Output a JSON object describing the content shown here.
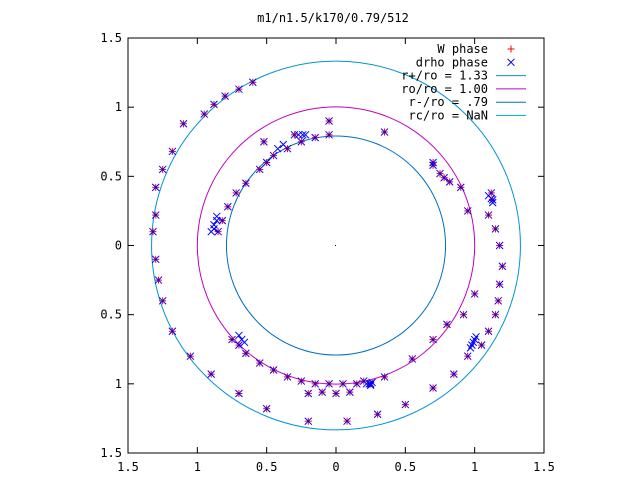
{
  "chart_data": {
    "type": "scatter",
    "title": "m1/n1.5/k170/0.79/512",
    "xlim": [
      -1.5,
      1.5
    ],
    "ylim": [
      -1.5,
      1.5
    ],
    "x_ticks": [
      {
        "value": -1.5,
        "label": "1.5"
      },
      {
        "value": -1,
        "label": "1"
      },
      {
        "value": -0.5,
        "label": "0.5"
      },
      {
        "value": 0,
        "label": "0"
      },
      {
        "value": 0.5,
        "label": "0.5"
      },
      {
        "value": 1,
        "label": "1"
      },
      {
        "value": 1.5,
        "label": "1.5"
      }
    ],
    "y_ticks": [
      {
        "value": 1.5,
        "label": "1.5"
      },
      {
        "value": 1,
        "label": "1"
      },
      {
        "value": 0.5,
        "label": "0.5"
      },
      {
        "value": 0,
        "label": "0"
      },
      {
        "value": -0.5,
        "label": "0.5"
      },
      {
        "value": -1,
        "label": "1"
      },
      {
        "value": -1.5,
        "label": "1.5"
      }
    ],
    "grid": false,
    "legend_position": "top-right",
    "legend": [
      {
        "label": "W phase",
        "marker": "+",
        "color": "#ff0000"
      },
      {
        "label": "drho phase",
        "marker": "x",
        "color": "#0000ff"
      },
      {
        "label": "r+/ro = 1.33",
        "line": true,
        "color": "#0094d6"
      },
      {
        "label": "ro/ro = 1.00",
        "line": true,
        "color": "#c000c0"
      },
      {
        "label": "r-/ro = .79",
        "line": true,
        "color": "#0070c0"
      },
      {
        "label": "rc/ro = NaN",
        "line": true,
        "color": "#00c0d0"
      }
    ],
    "circles": [
      {
        "name": "r+/ro = 1.33",
        "radius": 1.33,
        "color": "#0094d6"
      },
      {
        "name": "ro/ro = 1.00",
        "radius": 1.0,
        "color": "#c000c0"
      },
      {
        "name": "r-/ro = .79",
        "radius": 0.79,
        "color": "#0070c0"
      }
    ],
    "series": [
      {
        "name": "W phase",
        "marker": "+",
        "color": "#ff0000",
        "points": [
          [
            -1.1,
            0.88
          ],
          [
            -0.95,
            0.95
          ],
          [
            -0.88,
            1.02
          ],
          [
            -0.8,
            1.08
          ],
          [
            -0.7,
            1.13
          ],
          [
            -0.6,
            1.18
          ],
          [
            -1.18,
            0.68
          ],
          [
            -1.25,
            0.55
          ],
          [
            -1.3,
            0.42
          ],
          [
            -1.3,
            0.22
          ],
          [
            -1.32,
            0.1
          ],
          [
            -1.3,
            -0.1
          ],
          [
            -1.28,
            -0.25
          ],
          [
            -1.25,
            -0.4
          ],
          [
            -1.18,
            -0.62
          ],
          [
            -1.05,
            -0.8
          ],
          [
            -0.9,
            -0.93
          ],
          [
            -0.7,
            -1.07
          ],
          [
            -0.5,
            -1.18
          ],
          [
            -0.2,
            -1.27
          ],
          [
            0.08,
            -1.27
          ],
          [
            0.3,
            -1.22
          ],
          [
            0.5,
            -1.15
          ],
          [
            0.7,
            -1.03
          ],
          [
            0.85,
            -0.93
          ],
          [
            0.95,
            -0.8
          ],
          [
            1.05,
            -0.72
          ],
          [
            1.1,
            -0.62
          ],
          [
            1.15,
            -0.5
          ],
          [
            1.17,
            -0.4
          ],
          [
            1.18,
            -0.28
          ],
          [
            1.2,
            -0.15
          ],
          [
            1.18,
            0.0
          ],
          [
            1.15,
            0.12
          ],
          [
            1.1,
            0.22
          ],
          [
            1.13,
            0.33
          ],
          [
            1.12,
            0.38
          ],
          [
            -0.75,
            -0.68
          ],
          [
            -0.7,
            -0.72
          ],
          [
            -0.65,
            -0.78
          ],
          [
            -0.55,
            -0.85
          ],
          [
            -0.45,
            -0.9
          ],
          [
            -0.35,
            -0.95
          ],
          [
            -0.25,
            -0.98
          ],
          [
            -0.15,
            -1.0
          ],
          [
            -0.05,
            -1.0
          ],
          [
            0.05,
            -1.0
          ],
          [
            0.15,
            -1.0
          ],
          [
            0.2,
            -0.98
          ],
          [
            0.25,
            -1.0
          ],
          [
            -0.2,
            -1.07
          ],
          [
            -0.1,
            -1.06
          ],
          [
            0.0,
            -1.07
          ],
          [
            0.1,
            -1.06
          ],
          [
            0.35,
            -0.95
          ],
          [
            0.55,
            -0.82
          ],
          [
            0.7,
            -0.68
          ],
          [
            0.8,
            -0.57
          ],
          [
            0.92,
            -0.5
          ],
          [
            1.0,
            -0.35
          ],
          [
            0.75,
            0.52
          ],
          [
            0.78,
            0.49
          ],
          [
            0.82,
            0.46
          ],
          [
            0.7,
            0.58
          ],
          [
            0.9,
            0.42
          ],
          [
            0.95,
            0.25
          ],
          [
            -0.85,
            0.1
          ],
          [
            -0.82,
            0.18
          ],
          [
            -0.78,
            0.28
          ],
          [
            -0.72,
            0.38
          ],
          [
            -0.65,
            0.45
          ],
          [
            -0.55,
            0.55
          ],
          [
            -0.45,
            0.65
          ],
          [
            -0.35,
            0.7
          ],
          [
            -0.25,
            0.75
          ],
          [
            -0.15,
            0.78
          ],
          [
            -0.05,
            0.8
          ],
          [
            -0.5,
            0.6
          ],
          [
            -0.52,
            0.75
          ],
          [
            -0.3,
            0.8
          ],
          [
            -0.05,
            0.9
          ],
          [
            0.35,
            0.82
          ],
          [
            0.7,
            0.6
          ]
        ]
      },
      {
        "name": "drho phase",
        "marker": "x",
        "color": "#0000ff",
        "points": [
          [
            -1.1,
            0.88
          ],
          [
            -0.95,
            0.95
          ],
          [
            -0.88,
            1.02
          ],
          [
            -0.8,
            1.08
          ],
          [
            -0.7,
            1.13
          ],
          [
            -0.6,
            1.18
          ],
          [
            -1.18,
            0.68
          ],
          [
            -1.25,
            0.55
          ],
          [
            -1.3,
            0.42
          ],
          [
            -1.3,
            0.22
          ],
          [
            -1.32,
            0.1
          ],
          [
            -1.3,
            -0.1
          ],
          [
            -1.28,
            -0.25
          ],
          [
            -1.25,
            -0.4
          ],
          [
            -1.18,
            -0.62
          ],
          [
            -1.05,
            -0.8
          ],
          [
            -0.9,
            -0.93
          ],
          [
            -0.7,
            -1.07
          ],
          [
            -0.5,
            -1.18
          ],
          [
            -0.2,
            -1.27
          ],
          [
            0.08,
            -1.27
          ],
          [
            0.3,
            -1.22
          ],
          [
            0.5,
            -1.15
          ],
          [
            0.7,
            -1.03
          ],
          [
            0.85,
            -0.93
          ],
          [
            0.95,
            -0.8
          ],
          [
            1.05,
            -0.72
          ],
          [
            1.1,
            -0.62
          ],
          [
            1.15,
            -0.5
          ],
          [
            1.17,
            -0.4
          ],
          [
            1.18,
            -0.28
          ],
          [
            1.2,
            -0.15
          ],
          [
            1.18,
            0.0
          ],
          [
            1.15,
            0.12
          ],
          [
            1.1,
            0.22
          ],
          [
            1.13,
            0.33
          ],
          [
            1.12,
            0.38
          ],
          [
            -0.75,
            -0.68
          ],
          [
            -0.7,
            -0.72
          ],
          [
            -0.65,
            -0.78
          ],
          [
            -0.55,
            -0.85
          ],
          [
            -0.45,
            -0.9
          ],
          [
            -0.35,
            -0.95
          ],
          [
            -0.25,
            -0.98
          ],
          [
            -0.15,
            -1.0
          ],
          [
            -0.05,
            -1.0
          ],
          [
            0.05,
            -1.0
          ],
          [
            0.15,
            -1.0
          ],
          [
            0.2,
            -0.98
          ],
          [
            0.25,
            -1.0
          ],
          [
            -0.2,
            -1.07
          ],
          [
            -0.1,
            -1.06
          ],
          [
            0.0,
            -1.07
          ],
          [
            0.1,
            -1.06
          ],
          [
            0.35,
            -0.95
          ],
          [
            0.55,
            -0.82
          ],
          [
            0.7,
            -0.68
          ],
          [
            0.8,
            -0.57
          ],
          [
            0.92,
            -0.5
          ],
          [
            1.0,
            -0.35
          ],
          [
            0.75,
            0.52
          ],
          [
            0.78,
            0.49
          ],
          [
            0.82,
            0.46
          ],
          [
            0.7,
            0.58
          ],
          [
            0.9,
            0.42
          ],
          [
            0.95,
            0.25
          ],
          [
            -0.85,
            0.1
          ],
          [
            -0.82,
            0.18
          ],
          [
            -0.78,
            0.28
          ],
          [
            -0.72,
            0.38
          ],
          [
            -0.65,
            0.45
          ],
          [
            -0.55,
            0.55
          ],
          [
            -0.45,
            0.65
          ],
          [
            -0.35,
            0.7
          ],
          [
            -0.25,
            0.75
          ],
          [
            -0.15,
            0.78
          ],
          [
            -0.05,
            0.8
          ],
          [
            -0.5,
            0.6
          ],
          [
            -0.52,
            0.75
          ],
          [
            -0.3,
            0.8
          ],
          [
            -0.05,
            0.9
          ],
          [
            0.35,
            0.82
          ],
          [
            0.7,
            0.6
          ],
          [
            -0.9,
            0.1
          ],
          [
            -0.88,
            0.12
          ],
          [
            -0.88,
            0.15
          ],
          [
            -0.86,
            0.18
          ],
          [
            -0.86,
            0.21
          ],
          [
            -0.7,
            -0.65
          ],
          [
            -0.68,
            -0.68
          ],
          [
            -0.66,
            -0.7
          ],
          [
            0.22,
            -1.0
          ],
          [
            0.24,
            -1.0
          ],
          [
            0.26,
            -0.99
          ],
          [
            0.25,
            -1.01
          ],
          [
            0.98,
            -0.72
          ],
          [
            0.99,
            -0.7
          ],
          [
            1.0,
            -0.68
          ],
          [
            1.01,
            -0.66
          ],
          [
            0.97,
            -0.74
          ],
          [
            1.1,
            0.36
          ],
          [
            1.12,
            0.34
          ],
          [
            1.13,
            0.31
          ],
          [
            -0.27,
            0.8
          ],
          [
            -0.24,
            0.8
          ],
          [
            -0.22,
            0.8
          ],
          [
            -0.38,
            0.73
          ],
          [
            -0.42,
            0.7
          ]
        ]
      }
    ]
  }
}
